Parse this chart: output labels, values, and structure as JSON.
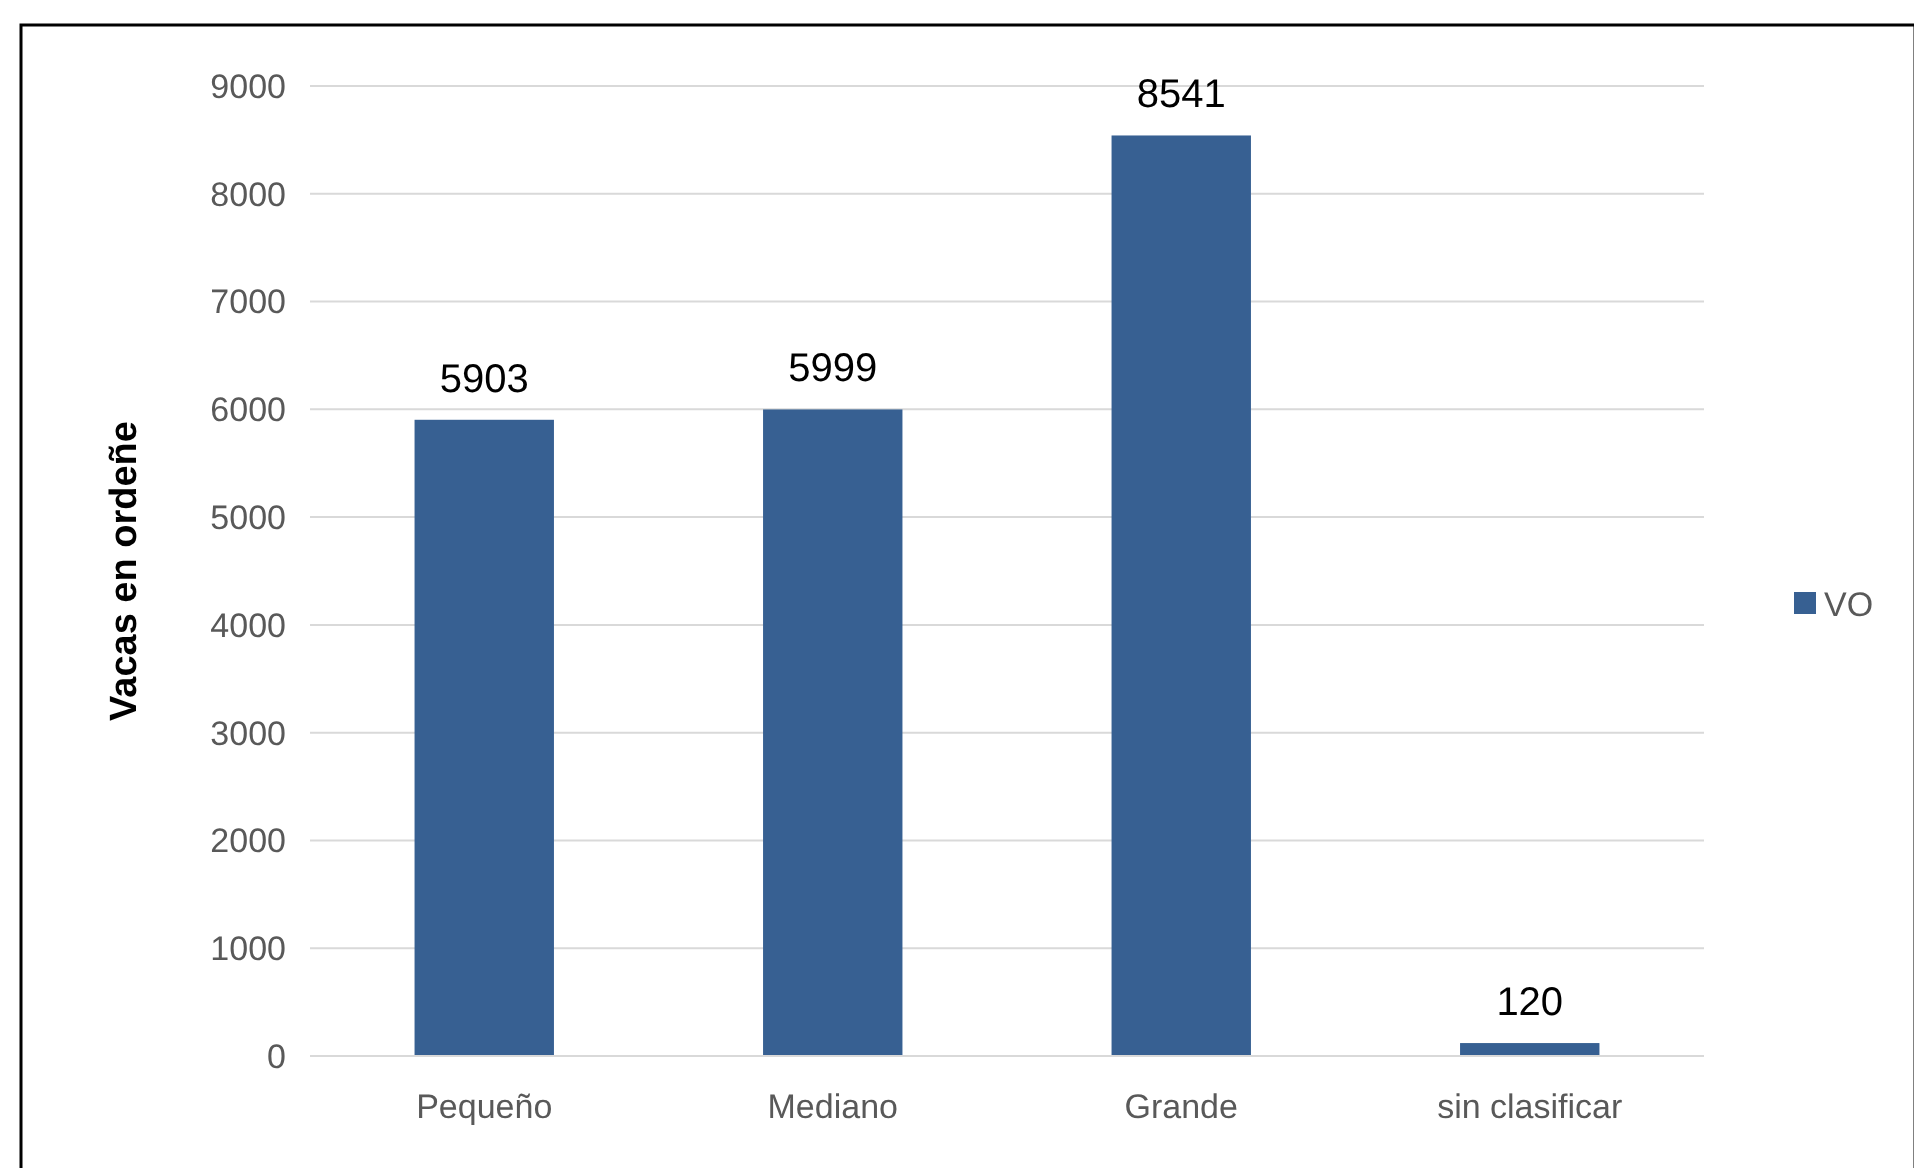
{
  "chart_data": {
    "type": "bar",
    "ylabel": "Vacas en ordeñe",
    "categories": [
      "Pequeño",
      "Mediano",
      "Grande",
      "sin clasificar"
    ],
    "series": [
      {
        "name": "VO",
        "color": "#376092",
        "values": [
          5903,
          5999,
          8541,
          120
        ]
      }
    ],
    "ylim": [
      0,
      9000
    ],
    "yticks": [
      0,
      1000,
      2000,
      3000,
      4000,
      5000,
      6000,
      7000,
      8000,
      9000
    ],
    "grid": "y",
    "legend": "right",
    "data_labels": true
  }
}
